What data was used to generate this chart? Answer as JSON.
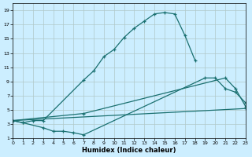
{
  "xlabel": "Humidex (Indice chaleur)",
  "bg_color": "#cceeff",
  "grid_color": "#b0c8c8",
  "line_color": "#1a7070",
  "xlim": [
    0,
    23
  ],
  "ylim": [
    1,
    20
  ],
  "xticks": [
    0,
    1,
    2,
    3,
    4,
    5,
    6,
    7,
    8,
    9,
    10,
    11,
    12,
    13,
    14,
    15,
    16,
    17,
    18,
    19,
    20,
    21,
    22,
    23
  ],
  "yticks": [
    1,
    3,
    5,
    7,
    9,
    11,
    13,
    15,
    17,
    19
  ],
  "s1x": [
    0,
    1,
    2,
    3,
    7,
    8,
    9,
    10,
    11,
    12,
    13,
    14,
    15,
    16,
    17,
    18
  ],
  "s1y": [
    3.5,
    3.2,
    3.5,
    3.5,
    9.2,
    10.5,
    12.5,
    13.5,
    15.2,
    16.5,
    17.5,
    18.5,
    18.7,
    18.5,
    15.5,
    12.0
  ],
  "s2x": [
    0,
    1,
    3,
    4,
    5,
    6,
    7,
    19,
    20,
    21,
    22,
    23
  ],
  "s2y": [
    3.5,
    3.2,
    2.5,
    2.0,
    2.0,
    1.8,
    1.5,
    9.5,
    9.5,
    8.0,
    7.5,
    6.0
  ],
  "s3x": [
    0,
    7,
    21,
    22,
    23
  ],
  "s3y": [
    3.5,
    4.5,
    9.5,
    8.0,
    5.5
  ],
  "s4x": [
    0,
    23
  ],
  "s4y": [
    3.5,
    5.2
  ]
}
